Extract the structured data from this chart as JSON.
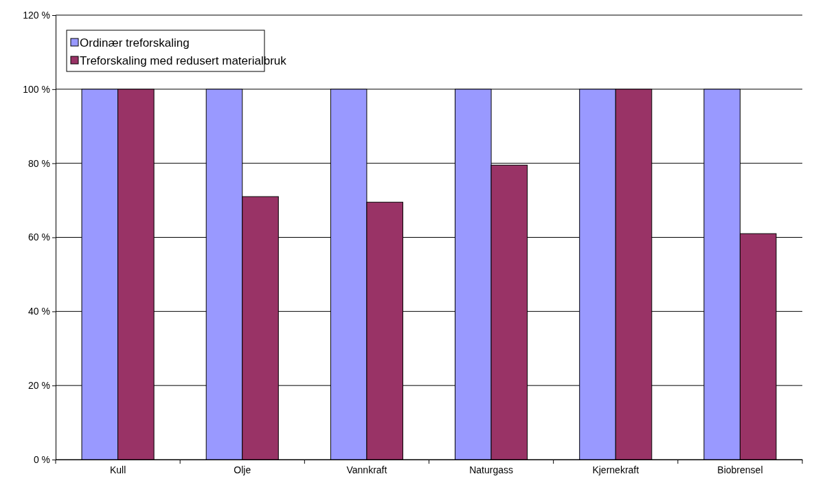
{
  "chart_data": {
    "type": "bar",
    "categories": [
      "Kull",
      "Olje",
      "Vannkraft",
      "Naturgass",
      "Kjernekraft",
      "Biobrensel"
    ],
    "series": [
      {
        "name": "Ordinær treforskaling",
        "color": "#9999ff",
        "values": [
          100,
          100,
          100,
          100,
          100,
          100
        ]
      },
      {
        "name": "Treforskaling med redusert materialbruk",
        "color": "#993366",
        "values": [
          100,
          71,
          69.5,
          79.5,
          100,
          61
        ]
      }
    ],
    "ylim": [
      0,
      120
    ],
    "yticks": [
      {
        "value": 0,
        "label": "0 %"
      },
      {
        "value": 20,
        "label": "20 %"
      },
      {
        "value": 40,
        "label": "40 %"
      },
      {
        "value": 60,
        "label": "60 %"
      },
      {
        "value": 80,
        "label": "80 %"
      },
      {
        "value": 100,
        "label": "100 %"
      },
      {
        "value": 120,
        "label": "120 %"
      }
    ],
    "grid": "y",
    "legend": "top left"
  }
}
